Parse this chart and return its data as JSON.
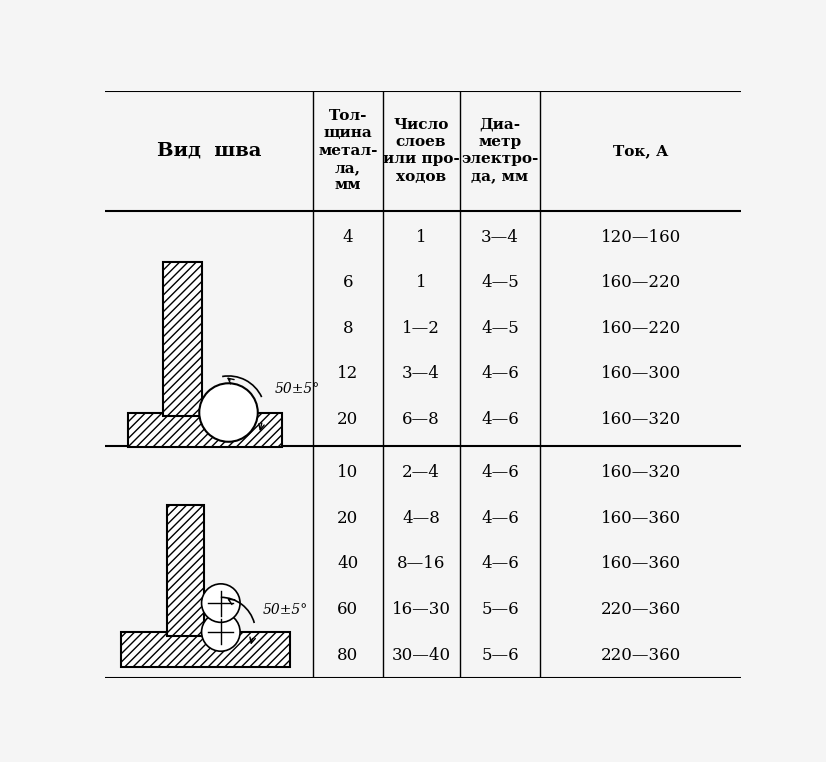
{
  "bg_color": "#f5f5f5",
  "title_col": "Вид  шва",
  "header_col1": "Тол-\nщина\nметал-\nла,\nмм",
  "header_col2": "Число\nслоев\nили про-\nходов",
  "header_col3": "Диа-\nметр\nэлектро-\nда, мм",
  "header_col4": "Ток, А",
  "row1_data": [
    [
      "4",
      "1",
      "3—4",
      "120—160"
    ],
    [
      "6",
      "1",
      "4—5",
      "160—220"
    ],
    [
      "8",
      "1—2",
      "4—5",
      "160—220"
    ],
    [
      "12",
      "3—4",
      "4—6",
      "160—300"
    ],
    [
      "20",
      "6—8",
      "4—6",
      "160—320"
    ]
  ],
  "row2_data": [
    [
      "10",
      "2—4",
      "4—6",
      "160—320"
    ],
    [
      "20",
      "4—8",
      "4—6",
      "160—360"
    ],
    [
      "40",
      "8—16",
      "4—6",
      "160—360"
    ],
    [
      "60",
      "16—30",
      "5—6",
      "220—360"
    ],
    [
      "80",
      "30—40",
      "5—6",
      "220—360"
    ]
  ],
  "angle_label": "50±5°"
}
